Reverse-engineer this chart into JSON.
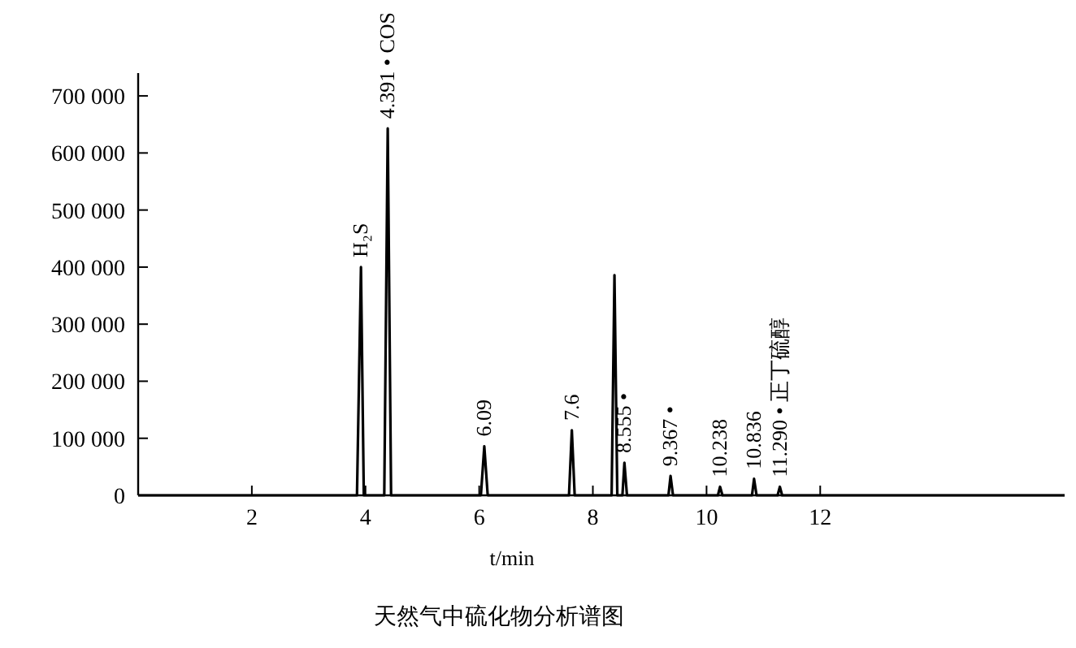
{
  "chart_data": {
    "type": "line",
    "title": "天然气中硫化物分析谱图",
    "xlabel": "t/min",
    "x": [
      0,
      3.85,
      3.92,
      3.97,
      4.33,
      4.391,
      4.45,
      6.03,
      6.09,
      6.15,
      7.58,
      7.63,
      7.68,
      8.33,
      8.38,
      8.43,
      8.52,
      8.555,
      8.6,
      9.33,
      9.367,
      9.41,
      10.2,
      10.238,
      10.28,
      10.8,
      10.836,
      10.88,
      11.25,
      11.29,
      11.33,
      16.3
    ],
    "values": [
      0,
      0,
      400000,
      0,
      0,
      643000,
      0,
      0,
      86000,
      0,
      0,
      114000,
      0,
      0,
      386000,
      0,
      0,
      57000,
      0,
      0,
      34000,
      0,
      0,
      15000,
      0,
      0,
      29000,
      0,
      0,
      15000,
      0,
      0
    ],
    "color": "#000000",
    "marker": "none",
    "line_style": "solid",
    "grid": false,
    "xlim": [
      0,
      16.3
    ],
    "ylim": [
      0,
      740000
    ],
    "xticks": [
      2,
      4,
      6,
      8,
      10,
      12
    ],
    "yticks": [
      0,
      {
        "value": 100000,
        "label": "100 000"
      },
      {
        "value": 200000,
        "label": "200 000"
      },
      {
        "value": 300000,
        "label": "300 000"
      },
      {
        "value": 400000,
        "label": "400 000"
      },
      {
        "value": 500000,
        "label": "500 000"
      },
      {
        "value": 600000,
        "label": "600 000"
      },
      {
        "value": 700000,
        "label": "700 000"
      }
    ],
    "annotations": [
      {
        "text": "H₂S",
        "x": 3.92,
        "y": 400000
      },
      {
        "text": "4.391 • COS",
        "x": 4.391,
        "y": 643000
      },
      {
        "text": "6.09",
        "x": 6.09,
        "y": 86000
      },
      {
        "text": "7.6",
        "x": 7.63,
        "y": 114000
      },
      {
        "text": "8.555 •",
        "x": 8.555,
        "y": 57000
      },
      {
        "text": "9.367 •",
        "x": 9.367,
        "y": 34000
      },
      {
        "text": "10.238",
        "x": 10.238,
        "y": 15000
      },
      {
        "text": "10.836",
        "x": 10.836,
        "y": 29000
      },
      {
        "text": "11.290 • 正丁硫醇",
        "x": 11.29,
        "y": 15000
      }
    ]
  }
}
